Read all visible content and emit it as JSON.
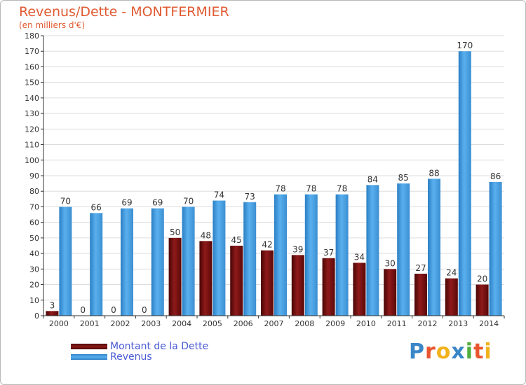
{
  "title": "Revenus/Dette - MONTFERMIER",
  "subtitle": "(en milliers d'€)",
  "colors": {
    "title": "#e05a32",
    "dette": "#7a0d0d",
    "revenus": "#4aa3e6",
    "grid": "#dddddd",
    "axis": "#333333",
    "legend_text": "#4a5bd6"
  },
  "legend": {
    "dette_label": "Montant de la Dette",
    "revenus_label": "Revenus"
  },
  "logo": {
    "text": "Proxiti"
  },
  "chart_data": {
    "type": "bar",
    "title": "Revenus/Dette - MONTFERMIER",
    "subtitle": "(en milliers d'€)",
    "xlabel": "",
    "ylabel": "",
    "ylim": [
      0,
      180
    ],
    "ytick_step": 10,
    "grid": true,
    "legend_position": "bottom-left",
    "categories": [
      "2000",
      "2001",
      "2002",
      "2003",
      "2004",
      "2005",
      "2006",
      "2007",
      "2008",
      "2009",
      "2010",
      "2011",
      "2012",
      "2013",
      "2014"
    ],
    "series": [
      {
        "name": "Montant de la Dette",
        "values": [
          3,
          0,
          0,
          0,
          50,
          48,
          45,
          42,
          39,
          37,
          34,
          30,
          27,
          24,
          20
        ]
      },
      {
        "name": "Revenus",
        "values": [
          70,
          66,
          69,
          69,
          70,
          74,
          73,
          78,
          78,
          78,
          84,
          85,
          88,
          170,
          86
        ]
      }
    ]
  }
}
